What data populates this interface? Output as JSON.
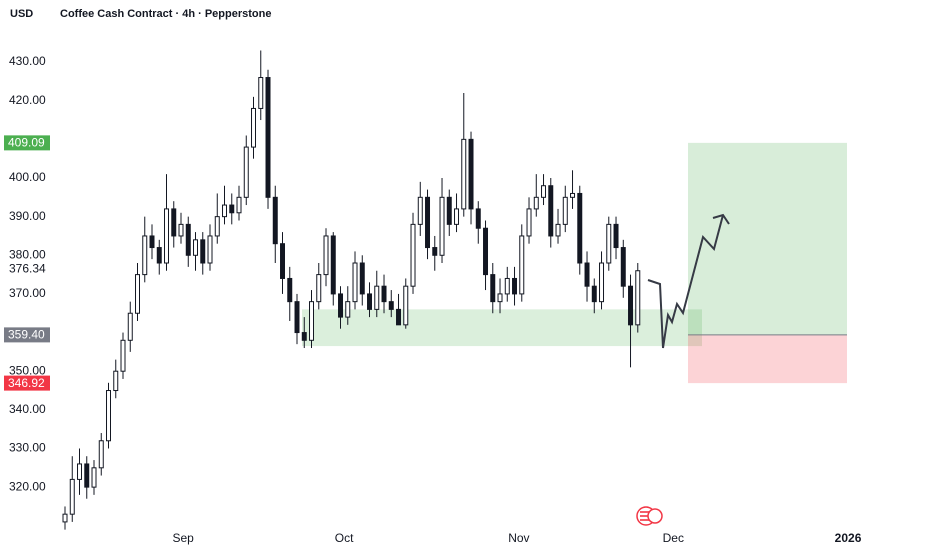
{
  "chart_data": {
    "type": "candlestick",
    "currency": "USD",
    "title": "Coffee Cash Contract · 4h · Pepperstone",
    "open": [
      311,
      313,
      322,
      326,
      320,
      325,
      332,
      345,
      350,
      358,
      365,
      375,
      385,
      382,
      378,
      392,
      385,
      388,
      380,
      384,
      378,
      385,
      390,
      393,
      391,
      395,
      408,
      418,
      426,
      395,
      383,
      374,
      368,
      360,
      358,
      368,
      375,
      385,
      370,
      364,
      368,
      378,
      370,
      366,
      372,
      368,
      366,
      362,
      372,
      388,
      395,
      382,
      380,
      395,
      388,
      392,
      410,
      392,
      387,
      375,
      368,
      370,
      374,
      370,
      385,
      392,
      395,
      398,
      385,
      388,
      395,
      396,
      378,
      372,
      368,
      378,
      388,
      382,
      372,
      362
    ],
    "high": [
      315,
      328,
      330,
      328,
      327,
      334,
      347,
      353,
      360,
      368,
      378,
      390,
      388,
      384,
      401,
      394,
      391,
      390,
      386,
      386,
      388,
      396,
      398,
      396,
      398,
      411,
      421,
      433,
      428,
      398,
      386,
      377,
      370,
      364,
      371,
      378,
      387,
      386,
      372,
      372,
      381,
      380,
      373,
      376,
      375,
      371,
      370,
      374,
      391,
      399,
      397,
      385,
      400,
      397,
      396,
      422,
      412,
      394,
      389,
      378,
      374,
      377,
      377,
      388,
      395,
      401,
      401,
      400,
      392,
      398,
      402,
      398,
      381,
      374,
      381,
      390,
      390,
      384,
      375,
      378
    ],
    "low": [
      309,
      311,
      318,
      317,
      318,
      323,
      330,
      343,
      348,
      355,
      363,
      373,
      379,
      375,
      376,
      382,
      383,
      377,
      376,
      375,
      376,
      383,
      388,
      388,
      389,
      393,
      405,
      415,
      392,
      378,
      370,
      363,
      357,
      356,
      356,
      366,
      372,
      367,
      361,
      362,
      366,
      367,
      364,
      364,
      365,
      364,
      362,
      361,
      370,
      385,
      379,
      376,
      378,
      385,
      386,
      390,
      388,
      383,
      371,
      365,
      365,
      368,
      367,
      368,
      383,
      390,
      393,
      382,
      383,
      386,
      392,
      375,
      368,
      365,
      366,
      376,
      379,
      369,
      351,
      360
    ],
    "close": [
      313,
      322,
      326,
      320,
      325,
      332,
      345,
      350,
      358,
      365,
      375,
      385,
      382,
      378,
      392,
      385,
      388,
      380,
      384,
      378,
      385,
      390,
      393,
      391,
      395,
      408,
      418,
      426,
      395,
      383,
      374,
      368,
      360,
      358,
      368,
      375,
      385,
      370,
      364,
      368,
      378,
      370,
      366,
      372,
      368,
      366,
      362,
      372,
      388,
      395,
      382,
      380,
      395,
      388,
      392,
      410,
      392,
      387,
      375,
      368,
      370,
      374,
      370,
      385,
      392,
      395,
      398,
      385,
      388,
      395,
      396,
      378,
      372,
      368,
      378,
      388,
      382,
      372,
      362,
      376
    ],
    "candle_color": "#131722",
    "xlim": [
      -1.38,
      111.03
    ],
    "xticks": [
      {
        "value": 16.3,
        "label": "Sep"
      },
      {
        "value": 38.5,
        "label": "Oct"
      },
      {
        "value": 62.6,
        "label": "Nov"
      },
      {
        "value": 83.9,
        "label": "Dec"
      },
      {
        "value": 108.0,
        "label": "2026"
      }
    ],
    "ylim": [
      310.2,
      438.3
    ],
    "yticks": [
      {
        "value": 320,
        "label": "320.00"
      },
      {
        "value": 330,
        "label": "330.00"
      },
      {
        "value": 340,
        "label": "340.00"
      },
      {
        "value": 350,
        "label": "350.00"
      },
      {
        "value": 370,
        "label": "370.00"
      },
      {
        "value": 380,
        "label": "380.00"
      },
      {
        "value": 390,
        "label": "390.00"
      },
      {
        "value": 400,
        "label": "400.00"
      },
      {
        "value": 420,
        "label": "420.00"
      },
      {
        "value": 430,
        "label": "430.00"
      }
    ],
    "last": 376.34,
    "target": 409.09,
    "target_color": "#4caf50",
    "entry": {
      "value": 359.4,
      "label": "359.40"
    },
    "entry_color": "#787b86",
    "stop": 346.92,
    "stop_color": "#f23645",
    "support_zone": [
      356.5,
      366.0
    ]
  }
}
